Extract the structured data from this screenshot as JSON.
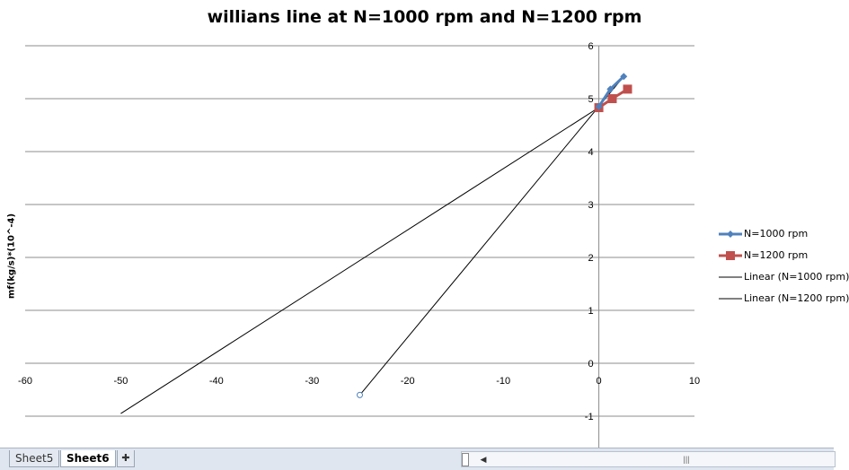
{
  "chart_data": {
    "type": "scatter",
    "title": "willians line at N=1000 rpm and N=1200 rpm",
    "xlabel": "",
    "ylabel": "mf(kg/s)*(10^-4)",
    "xlim": [
      -60,
      10
    ],
    "ylim": [
      -1.6,
      6
    ],
    "x_ticks": [
      "-60",
      "-50",
      "-40",
      "-30",
      "-20",
      "-10",
      "0",
      "10"
    ],
    "y_ticks": [
      "6",
      "5",
      "4",
      "3",
      "2",
      "1",
      "0",
      "-1"
    ],
    "grid": "horizontal major gridlines",
    "legend_position": "right",
    "series": [
      {
        "name": "N=1000 rpm",
        "color": "#4F81BD",
        "marker": "diamond",
        "x": [
          0,
          1.2,
          2.6
        ],
        "y": [
          4.85,
          5.18,
          5.42
        ]
      },
      {
        "name": "N=1200 rpm",
        "color": "#C0504D",
        "marker": "square",
        "x": [
          0,
          1.4,
          3.0
        ],
        "y": [
          4.83,
          5.0,
          5.18
        ]
      }
    ],
    "trendlines": [
      {
        "name": "Linear (N=1000 rpm)",
        "color": "#000000",
        "x": [
          -25,
          2.6
        ],
        "y": [
          -0.6,
          5.42
        ]
      },
      {
        "name": "Linear (N=1200 rpm)",
        "color": "#000000",
        "x": [
          -50,
          3.0
        ],
        "y": [
          -0.95,
          5.18
        ]
      }
    ],
    "annotations": [
      {
        "type": "marker",
        "x": -25,
        "y": -0.6
      }
    ]
  },
  "legend": {
    "entries": [
      "N=1000 rpm",
      "N=1200 rpm",
      "Linear (N=1000 rpm)",
      "Linear (N=1200 rpm)"
    ]
  },
  "sheets": {
    "tabs": [
      "Sheet5",
      "Sheet6"
    ],
    "active": "Sheet6"
  },
  "icons": {
    "insert_sheet": "insert-worksheet-icon",
    "scroll_left": "scroll-left-icon",
    "split": "split-handle-icon"
  }
}
